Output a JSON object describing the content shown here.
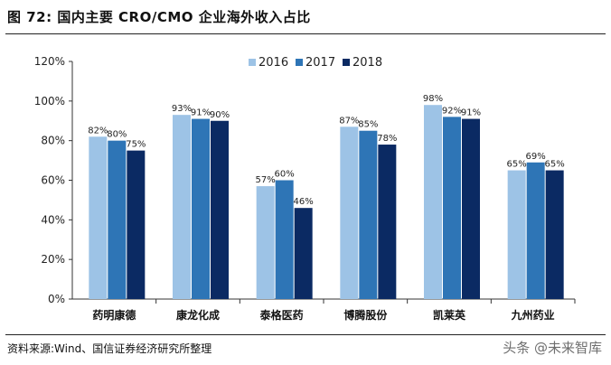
{
  "header": {
    "title": "图 72:  国内主要 CRO/CMO 企业海外收入占比"
  },
  "footer": {
    "source": "资料来源:Wind、国信证券经济研究所整理",
    "watermark": "头条 @未来智库"
  },
  "chart_data": {
    "type": "bar",
    "categories": [
      "药明康德",
      "康龙化成",
      "泰格医药",
      "博腾股份",
      "凯莱英",
      "九州药业"
    ],
    "series": [
      {
        "name": "2016",
        "values": [
          82,
          93,
          57,
          87,
          98,
          65
        ],
        "labels": [
          "82%",
          "93%",
          "57%",
          "87%",
          "98%",
          "65%"
        ],
        "color": "#9dc3e6"
      },
      {
        "name": "2017",
        "values": [
          80,
          91,
          60,
          85,
          92,
          69
        ],
        "labels": [
          "80%",
          "91%",
          "60%",
          "85%",
          "92%",
          "69%"
        ],
        "color": "#2e75b6"
      },
      {
        "name": "2018",
        "values": [
          75,
          90,
          46,
          78,
          91,
          65
        ],
        "labels": [
          "75%",
          "90%",
          "46%",
          "78%",
          "91%",
          "65%"
        ],
        "color": "#0b2a63"
      }
    ],
    "yticks": [
      0,
      20,
      40,
      60,
      80,
      100,
      120
    ],
    "ytick_labels": [
      "0%",
      "20%",
      "40%",
      "60%",
      "80%",
      "100%",
      "120%"
    ],
    "ylim": [
      0,
      120
    ],
    "grid": false,
    "legend": "top-center",
    "xlabel": "",
    "ylabel": ""
  }
}
